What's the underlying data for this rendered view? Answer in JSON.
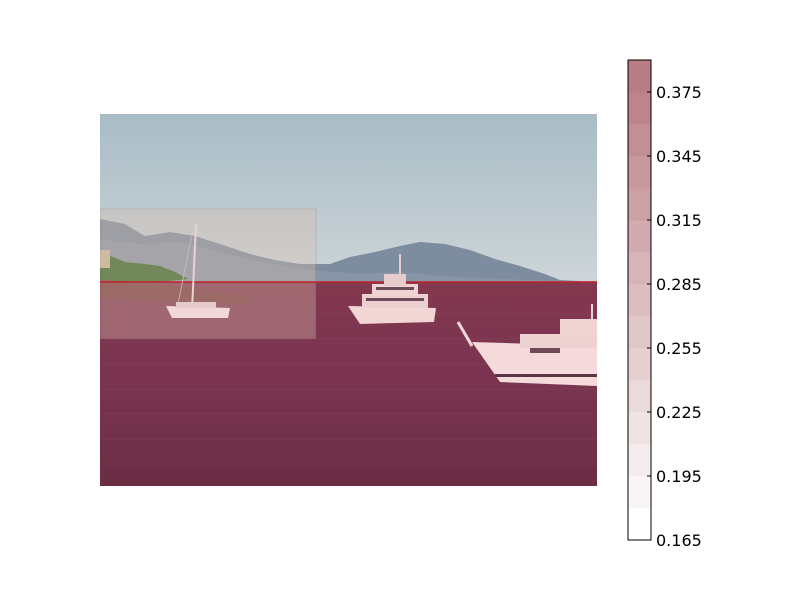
{
  "figure": {
    "description_colors": {
      "sky_top": "#aebfc8",
      "sky_bottom": "#c9d2d6",
      "mountain": "#7c8a9c",
      "mountain_far": "#8d9aaa",
      "sea_top": "#7e3650",
      "sea_bottom": "#6a2e45",
      "overlay": "#a0304a",
      "highlight_box": "#d8b8a8",
      "boat": "#f2d6d6",
      "boat_shadow": "#6f4a5a",
      "land_green": "#3e6a2c",
      "rocks": "#7a3f40",
      "threshold_line": "#c0202a"
    }
  },
  "colorbar": {
    "tick_labels": [
      "0.375",
      "0.345",
      "0.315",
      "0.285",
      "0.255",
      "0.225",
      "0.195",
      "0.165"
    ],
    "tick_values": [
      0.375,
      0.345,
      0.315,
      0.285,
      0.255,
      0.225,
      0.195,
      0.165
    ],
    "vmin": 0.165,
    "vmax": 0.39,
    "band_count": 15,
    "color_low": "#ffffff",
    "color_high": "#b87c82"
  }
}
